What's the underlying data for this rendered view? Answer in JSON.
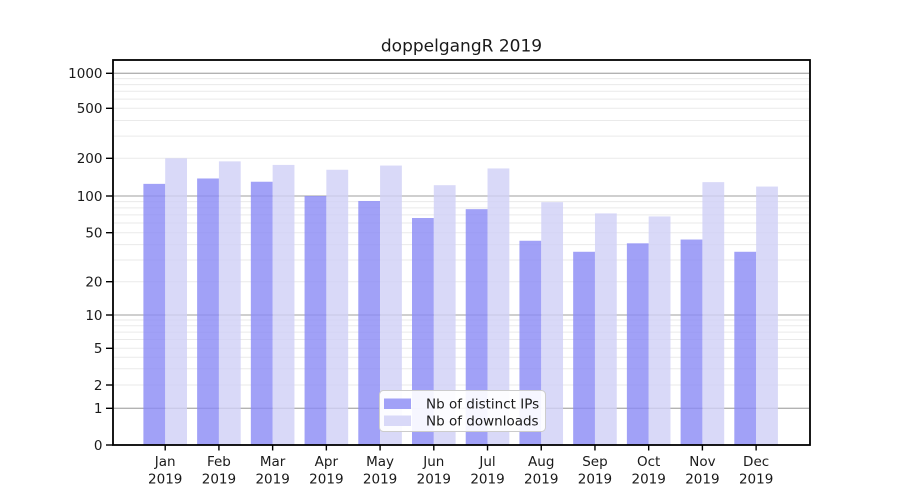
{
  "title": "doppelgangR 2019",
  "chart_data": {
    "type": "bar",
    "title": "doppelgangR 2019",
    "categories": [
      "Jan 2019",
      "Feb 2019",
      "Mar 2019",
      "Apr 2019",
      "May 2019",
      "Jun 2019",
      "Jul 2019",
      "Aug 2019",
      "Sep 2019",
      "Oct 2019",
      "Nov 2019",
      "Dec 2019"
    ],
    "series": [
      {
        "name": "Nb of distinct IPs",
        "values": [
          125,
          138,
          130,
          100,
          91,
          66,
          78,
          43,
          35,
          41,
          44,
          35
        ]
      },
      {
        "name": "Nb of downloads",
        "values": [
          200,
          189,
          177,
          162,
          175,
          122,
          166,
          89,
          72,
          68,
          129,
          119
        ]
      }
    ],
    "y_ticks": [
      0,
      1,
      2,
      5,
      10,
      20,
      50,
      100,
      200,
      500,
      1000
    ],
    "ylim": [
      0,
      1000
    ],
    "y_scale": "log-like with zero baseline",
    "xlabel": "",
    "ylabel": "",
    "grid": "on",
    "legend_position": "lower center"
  },
  "colors": {
    "bar_distinct_ips": "rgba(138,138,245,0.8)",
    "bar_downloads": "rgba(207,207,246,0.8)",
    "legend_swatch_ips": "#a1a1f7",
    "legend_swatch_downloads": "#d9d9f8",
    "grid_major": "#b2b2b2",
    "grid_minor": "#eaeaea",
    "spine": "#000000",
    "legend_border": "#cccccc",
    "legend_background": "#ffffff"
  }
}
